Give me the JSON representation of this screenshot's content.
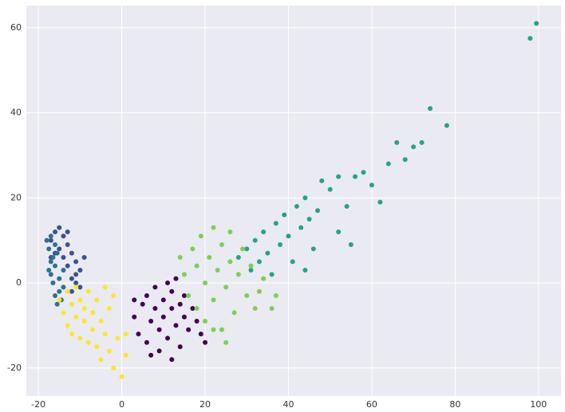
{
  "chart_data": {
    "type": "scatter",
    "xlim": [
      -22.9,
      105.4
    ],
    "ylim": [
      -26.6,
      65.2
    ],
    "xticks": [
      -20,
      0,
      20,
      40,
      60,
      80,
      100
    ],
    "yticks": [
      -20,
      0,
      20,
      40,
      60
    ],
    "grid": true,
    "series": [
      {
        "color": "#440154",
        "x": [
          3,
          4,
          5,
          6,
          6,
          7,
          8,
          8,
          9,
          9,
          10,
          10,
          11,
          11,
          12,
          12,
          13,
          13,
          14,
          14,
          15,
          15,
          16,
          17,
          18,
          19,
          7,
          12,
          3,
          20
        ],
        "y": [
          -8,
          -12,
          -5,
          -3,
          -14,
          -9,
          -1,
          -6,
          -11,
          -16,
          -4,
          -8,
          0,
          -13,
          -6,
          -2,
          -10,
          1,
          -5,
          -15,
          -8,
          -3,
          -11,
          -6,
          -9,
          -12,
          -17,
          -18,
          -4,
          -14
        ]
      },
      {
        "color": "#3b528b",
        "x": [
          -17,
          -16,
          -15,
          -14,
          -13,
          -12,
          -11,
          -10,
          -9,
          -15,
          -13,
          -12,
          -11,
          -14,
          -16,
          -10,
          -12,
          -13,
          -17,
          -11
        ],
        "y": [
          10,
          12,
          13,
          11,
          9,
          7,
          5,
          3,
          6,
          8,
          4,
          1,
          0,
          6,
          7,
          -1,
          -2,
          12,
          6,
          2
        ]
      },
      {
        "color": "#2c728e",
        "x": [
          -18,
          -17.5,
          -17,
          -17,
          -16.5,
          -16,
          -16,
          -15.5,
          -15,
          -15,
          -14.5,
          -17,
          -16,
          -14,
          -15.5,
          -17.5,
          -16.5,
          -14
        ],
        "y": [
          10,
          8,
          5,
          2,
          0,
          -3,
          4,
          7,
          1,
          -2,
          -4,
          11,
          9,
          -1,
          -5,
          3,
          6,
          3
        ]
      },
      {
        "color": "#21a585",
        "x": [
          28,
          30,
          31,
          32,
          33,
          34,
          35,
          36,
          37,
          38,
          39,
          40,
          41,
          42,
          43,
          44,
          45,
          46,
          47,
          48,
          50,
          52,
          54,
          56,
          58,
          60,
          62,
          64,
          66,
          68,
          70,
          72,
          74,
          78,
          98,
          99.5,
          55,
          52,
          44
        ],
        "y": [
          6,
          8,
          3,
          10,
          5,
          12,
          7,
          2,
          14,
          9,
          16,
          11,
          5,
          18,
          13,
          20,
          15,
          8,
          17,
          24,
          22,
          25,
          18,
          25,
          26,
          23,
          19,
          28,
          33,
          29,
          32,
          33,
          41,
          37,
          57.5,
          61,
          9,
          12,
          3
        ]
      },
      {
        "color": "#7ad151",
        "x": [
          14,
          15,
          16,
          17,
          18,
          18,
          19,
          20,
          20,
          21,
          22,
          22,
          23,
          24,
          24,
          25,
          26,
          26,
          27,
          28,
          29,
          30,
          31,
          32,
          33,
          34,
          36,
          25,
          22,
          37
        ],
        "y": [
          6,
          2,
          -3,
          8,
          4,
          -6,
          11,
          0,
          -9,
          6,
          13,
          -4,
          3,
          9,
          -11,
          -1,
          5,
          12,
          -7,
          2,
          8,
          -3,
          4,
          -6,
          -2,
          1,
          -6,
          -14,
          -11,
          -3
        ]
      },
      {
        "color": "#fde725",
        "x": [
          -15,
          -14,
          -13,
          -13,
          -12,
          -12,
          -11,
          -11,
          -10,
          -10,
          -9,
          -9,
          -8,
          -8,
          -7,
          -7,
          -6,
          -6,
          -5,
          -5,
          -4,
          -3,
          -3,
          -2,
          -1,
          0,
          1,
          1,
          -4,
          -2
        ],
        "y": [
          -4,
          -7,
          -2,
          -10,
          -5,
          -12,
          -8,
          -1,
          -4,
          -13,
          -9,
          -6,
          -14,
          -2,
          -11,
          -7,
          -4,
          -15,
          -9,
          -18,
          -12,
          -16,
          -6,
          -20,
          -13,
          -22,
          -17,
          -12,
          -1,
          -3
        ]
      }
    ]
  }
}
